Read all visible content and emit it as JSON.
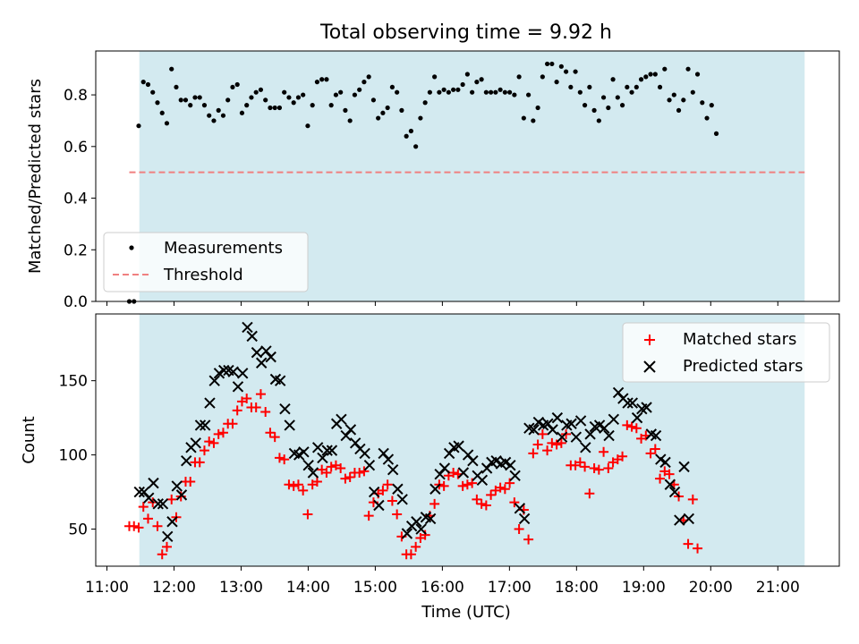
{
  "figure": {
    "title": "Total observing time = 9.92 h"
  },
  "chart_data": [
    {
      "type": "scatter",
      "title": "Total observing time = 9.92 h",
      "xlabel": "",
      "ylabel": "Matched/Predicted stars",
      "xlim": [
        "10:50",
        "21:55"
      ],
      "ylim": [
        0,
        0.97
      ],
      "x_ticks": [
        "11:00",
        "12:00",
        "13:00",
        "14:00",
        "15:00",
        "16:00",
        "17:00",
        "18:00",
        "19:00",
        "20:00",
        "21:00"
      ],
      "y_ticks": [
        "0.0",
        "0.2",
        "0.4",
        "0.6",
        "0.8"
      ],
      "shaded_span": [
        "11:29",
        "21:24"
      ],
      "shaded_color": "#d3eaf0",
      "threshold": {
        "name": "Threshold",
        "value": 0.5,
        "x_range": [
          "11:20",
          "21:24"
        ],
        "color": "#f08080",
        "style": "dashed"
      },
      "legend": {
        "position": "lower-left",
        "entries": [
          "Measurements",
          "Threshold"
        ]
      },
      "series": [
        {
          "name": "Measurements",
          "color": "#000000",
          "marker": "dot",
          "x_start": "11:20",
          "x_step_min": 4.2,
          "y": [
            0.0,
            0.0,
            0.68,
            0.85,
            0.84,
            0.81,
            0.77,
            0.73,
            0.69,
            0.9,
            0.83,
            0.78,
            0.78,
            0.76,
            0.79,
            0.79,
            0.76,
            0.72,
            0.7,
            0.74,
            0.72,
            0.78,
            0.83,
            0.84,
            0.73,
            0.76,
            0.79,
            0.81,
            0.82,
            0.78,
            0.75,
            0.75,
            0.75,
            0.81,
            0.79,
            0.77,
            0.79,
            0.8,
            0.68,
            0.76,
            0.85,
            0.86,
            0.86,
            0.76,
            0.8,
            0.81,
            0.74,
            0.7,
            0.8,
            0.82,
            0.85,
            0.87,
            0.78,
            0.71,
            0.73,
            0.75,
            0.83,
            0.81,
            0.74,
            0.64,
            0.66,
            0.6,
            0.71,
            0.77,
            0.81,
            0.87,
            0.81,
            0.82,
            0.81,
            0.82,
            0.82,
            0.84,
            0.88,
            0.81,
            0.85,
            0.86,
            0.81,
            0.81,
            0.81,
            0.82,
            0.81,
            0.81,
            0.8,
            0.87,
            0.71,
            0.8,
            0.7,
            0.75,
            0.87,
            0.92,
            0.92,
            0.85,
            0.91,
            0.89,
            0.83,
            0.89,
            0.81,
            0.76,
            0.83,
            0.74,
            0.7,
            0.79,
            0.75,
            0.86,
            0.79,
            0.76,
            0.83,
            0.81,
            0.83,
            0.86,
            0.87,
            0.88,
            0.88,
            0.83,
            0.9,
            0.78,
            0.8,
            0.74,
            0.78,
            0.9,
            0.81,
            0.88,
            0.77,
            0.71,
            0.76,
            0.65
          ]
        }
      ]
    },
    {
      "type": "scatter",
      "title": "",
      "xlabel": "Time (UTC)",
      "ylabel": "Count",
      "xlim": [
        "10:50",
        "21:55"
      ],
      "ylim": [
        25,
        195
      ],
      "x_ticks": [
        "11:00",
        "12:00",
        "13:00",
        "14:00",
        "15:00",
        "16:00",
        "17:00",
        "18:00",
        "19:00",
        "20:00",
        "21:00"
      ],
      "y_ticks": [
        "50",
        "100",
        "150"
      ],
      "shaded_span": [
        "11:29",
        "21:24"
      ],
      "shaded_color": "#d3eaf0",
      "legend": {
        "position": "upper-right",
        "entries": [
          "Matched stars",
          "Predicted stars"
        ]
      },
      "series": [
        {
          "name": "Matched stars",
          "color": "#ff0000",
          "marker": "plus",
          "x_start": "11:20",
          "x_step_min": 4.2,
          "y": [
            52,
            52,
            51,
            65,
            57,
            68,
            52,
            33,
            38,
            70,
            58,
            72,
            82,
            82,
            95,
            95,
            103,
            109,
            108,
            114,
            115,
            121,
            121,
            130,
            136,
            138,
            132,
            132,
            141,
            129,
            115,
            112,
            98,
            97,
            80,
            79,
            80,
            76,
            60,
            80,
            82,
            90,
            88,
            92,
            93,
            91,
            84,
            85,
            88,
            88,
            89,
            59,
            68,
            74,
            76,
            80,
            69,
            60,
            45,
            33,
            33,
            38,
            44,
            46,
            59,
            67,
            80,
            79,
            86,
            88,
            87,
            79,
            80,
            81,
            70,
            67,
            66,
            73,
            76,
            78,
            77,
            81,
            68,
            50,
            63,
            43,
            101,
            107,
            114,
            103,
            108,
            107,
            108,
            114,
            93,
            93,
            95,
            92,
            74,
            91,
            90,
            102,
            91,
            95,
            97,
            99,
            120,
            119,
            118,
            111,
            113,
            101,
            104,
            84,
            89,
            87,
            80,
            72,
            56,
            40,
            70,
            37
          ]
        },
        {
          "name": "Predicted stars",
          "color": "#000000",
          "marker": "cross",
          "x_start": "11:29",
          "x_step_min": 4.2,
          "y": [
            75,
            75,
            71,
            81,
            67,
            67,
            45,
            55,
            79,
            73,
            96,
            105,
            108,
            120,
            120,
            135,
            150,
            155,
            157,
            157,
            156,
            146,
            155,
            186,
            180,
            169,
            162,
            170,
            166,
            151,
            150,
            131,
            120,
            101,
            100,
            102,
            93,
            88,
            105,
            98,
            103,
            103,
            121,
            124,
            113,
            117,
            108,
            104,
            101,
            93,
            75,
            66,
            101,
            97,
            90,
            77,
            70,
            47,
            52,
            55,
            50,
            58,
            57,
            77,
            87,
            91,
            101,
            105,
            106,
            88,
            100,
            96,
            86,
            83,
            91,
            95,
            96,
            94,
            95,
            93,
            86,
            64,
            57,
            118,
            117,
            122,
            120,
            121,
            117,
            125,
            112,
            120,
            121,
            112,
            123,
            105,
            114,
            119,
            120,
            118,
            113,
            124,
            142,
            138,
            135,
            135,
            125,
            131,
            132,
            114,
            113,
            97,
            95,
            80,
            75,
            56,
            92,
            57
          ]
        }
      ]
    }
  ]
}
